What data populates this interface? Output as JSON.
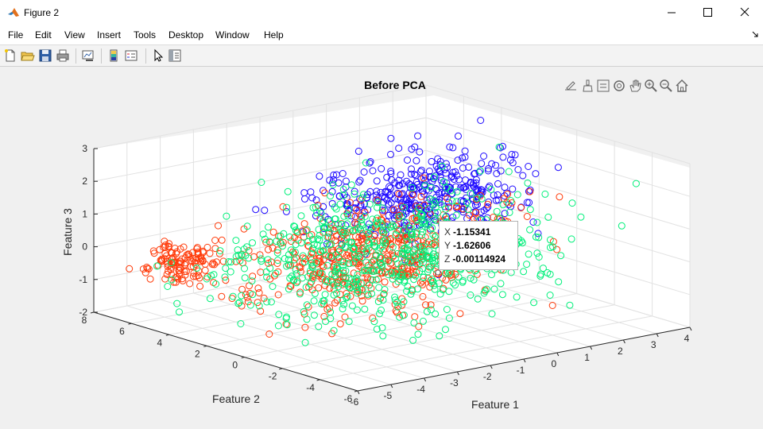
{
  "window": {
    "title": "Figure 2"
  },
  "menu": [
    "File",
    "Edit",
    "View",
    "Insert",
    "Tools",
    "Desktop",
    "Window",
    "Help"
  ],
  "toolbar": {
    "icons": [
      "new-figure-icon",
      "open-file-icon",
      "save-icon",
      "print-icon",
      "link-plot-icon",
      "insert-colorbar-icon",
      "insert-legend-icon",
      "edit-plot-icon",
      "property-inspector-icon"
    ]
  },
  "axes_toolbar": {
    "icons": [
      "export-icon",
      "brush-icon",
      "data-tips-icon",
      "rotate-3d-icon",
      "pan-icon",
      "zoom-in-icon",
      "zoom-out-icon",
      "restore-view-icon"
    ]
  },
  "colors": {
    "red": "#ff3b0a",
    "green": "#00f07a",
    "blue": "#1e0aff",
    "figure_bg": "#f0f0f0"
  },
  "chart_data": {
    "type": "scatter",
    "title": "Before PCA",
    "xlabel": "Feature 1",
    "ylabel": "Feature 2",
    "zlabel": "Feature 3",
    "xlim": [
      -6,
      4
    ],
    "ylim": [
      -6,
      8
    ],
    "zlim": [
      -2,
      3
    ],
    "x_ticks": [
      "-6",
      "-5",
      "-4",
      "-3",
      "-2",
      "-1",
      "0",
      "1",
      "2",
      "3",
      "4"
    ],
    "y_ticks": [
      "-6",
      "-4",
      "-2",
      "0",
      "2",
      "4",
      "6",
      "8"
    ],
    "z_ticks": [
      "-2",
      "-1",
      "0",
      "1",
      "2",
      "3"
    ],
    "grid": true,
    "marker": "circle",
    "series": [
      {
        "color": "#1e0aff",
        "approx_center": [
          1,
          3,
          1
        ],
        "approx_spread": [
          1.5,
          1.2,
          0.6
        ]
      },
      {
        "color": "#ff3b0a",
        "approx_center": [
          -1.5,
          1,
          0
        ],
        "approx_spread": [
          1.8,
          1.4,
          0.7
        ]
      },
      {
        "color": "#ff3b0a",
        "approx_center": [
          -4.5,
          6,
          -0.5
        ],
        "approx_spread": [
          0.4,
          0.5,
          0.3
        ]
      },
      {
        "color": "#00f07a",
        "approx_center": [
          -1,
          1,
          0
        ],
        "approx_spread": [
          2.2,
          2.0,
          0.9
        ]
      }
    ],
    "datatip": {
      "x_label": "X",
      "x": "-1.15341",
      "y_label": "Y",
      "y": "-1.62606",
      "z_label": "Z",
      "z": "-0.00114924"
    }
  }
}
